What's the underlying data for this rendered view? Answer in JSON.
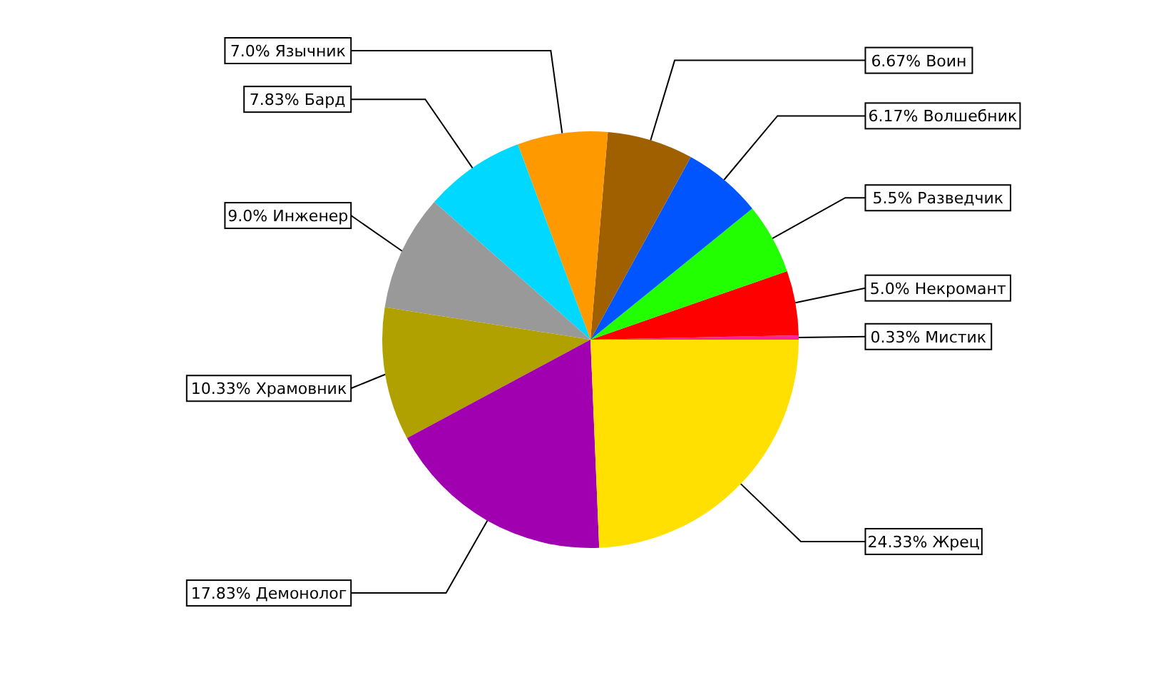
{
  "chart_data": {
    "type": "pie",
    "categories": [
      "Мистик",
      "Некромант",
      "Разведчик",
      "Волшебник",
      "Воин",
      "Язычник",
      "Бард",
      "Инженер",
      "Храмовник",
      "Демонолог",
      "Жрец"
    ],
    "values": [
      0.33,
      5.0,
      5.5,
      6.17,
      6.67,
      7.0,
      7.83,
      9.0,
      10.33,
      17.83,
      24.33
    ],
    "value_labels": [
      "0.33%",
      "5.0%",
      "5.5%",
      "6.17%",
      "6.67%",
      "7.0%",
      "7.83%",
      "9.0%",
      "10.33%",
      "17.83%",
      "24.33%"
    ],
    "colors": [
      "#ff1fa0",
      "#ff0000",
      "#22ff00",
      "#0055ff",
      "#a06000",
      "#ff9900",
      "#00d8ff",
      "#999999",
      "#b0a000",
      "#a000b0",
      "#ffe000"
    ]
  }
}
